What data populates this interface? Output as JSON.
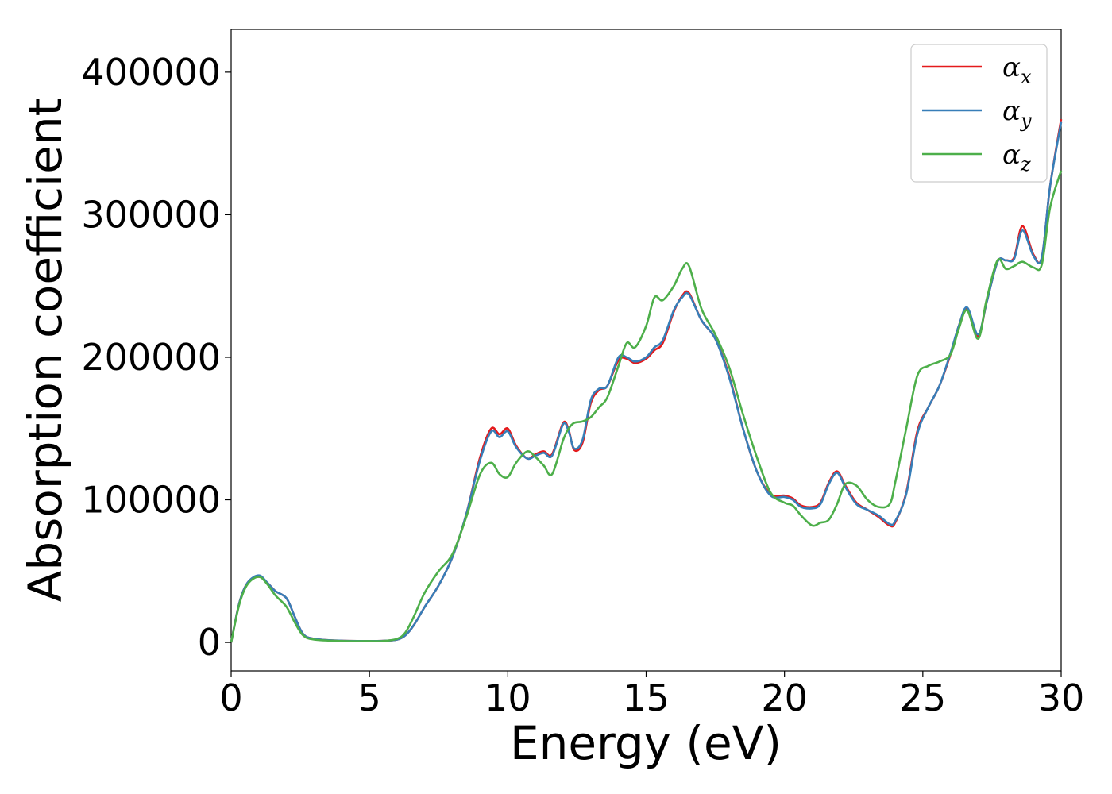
{
  "chart_data": {
    "type": "line",
    "xlabel": "Energy (eV)",
    "ylabel": "Absorption coefficient",
    "xlim": [
      0,
      30
    ],
    "ylim": [
      -20000,
      430000
    ],
    "xticks": [
      0,
      5,
      10,
      15,
      20,
      25,
      30
    ],
    "xtick_labels": [
      "0",
      "5",
      "10",
      "15",
      "20",
      "25",
      "30"
    ],
    "yticks": [
      0,
      100000,
      200000,
      300000,
      400000
    ],
    "ytick_labels": [
      "0",
      "100000",
      "200000",
      "300000",
      "400000"
    ],
    "grid": false,
    "legend_position": "top-right",
    "series": [
      {
        "name": "α",
        "subscript": "x",
        "color": "#e41a1c",
        "x": [
          0,
          0.3,
          0.6,
          1.0,
          1.3,
          1.6,
          2.0,
          2.3,
          2.6,
          3.0,
          4.0,
          5.0,
          5.5,
          6.0,
          6.3,
          6.6,
          7.0,
          7.5,
          8.0,
          8.5,
          9.0,
          9.4,
          9.7,
          10.0,
          10.3,
          10.7,
          11.0,
          11.3,
          11.6,
          12.0,
          12.2,
          12.4,
          12.7,
          13.0,
          13.3,
          13.6,
          14.0,
          14.3,
          14.6,
          15.0,
          15.3,
          15.6,
          16.0,
          16.3,
          16.55,
          17.0,
          17.5,
          18.0,
          18.5,
          19.0,
          19.5,
          20.0,
          20.3,
          20.6,
          21.0,
          21.3,
          21.6,
          21.9,
          22.2,
          22.6,
          23.0,
          23.4,
          23.8,
          24.0,
          24.4,
          24.8,
          25.2,
          25.6,
          26.0,
          26.3,
          26.6,
          27.0,
          27.3,
          27.7,
          28.0,
          28.3,
          28.6,
          29.0,
          29.3,
          29.6,
          30.0
        ],
        "y": [
          0,
          28000,
          42000,
          46000,
          42000,
          36000,
          31000,
          18000,
          6000,
          2500,
          1200,
          1000,
          1100,
          2000,
          5000,
          12000,
          25000,
          40000,
          60000,
          90000,
          130000,
          150000,
          146000,
          150000,
          138000,
          129000,
          132000,
          134000,
          132000,
          154000,
          149000,
          135000,
          140000,
          168000,
          177000,
          180000,
          198000,
          199000,
          196000,
          199000,
          205000,
          210000,
          232000,
          243000,
          245000,
          226000,
          213000,
          187000,
          150000,
          120000,
          104000,
          103000,
          101000,
          96000,
          95000,
          98000,
          112000,
          120000,
          110000,
          98000,
          93000,
          88000,
          82000,
          84000,
          105000,
          148000,
          165000,
          180000,
          202000,
          222000,
          234000,
          215000,
          238000,
          267000,
          268000,
          270000,
          292000,
          272000,
          270000,
          320000,
          367000
        ]
      },
      {
        "name": "α",
        "subscript": "y",
        "color": "#377eb8",
        "x": [
          0,
          0.3,
          0.6,
          1.0,
          1.3,
          1.6,
          2.0,
          2.3,
          2.6,
          3.0,
          4.0,
          5.0,
          5.5,
          6.0,
          6.3,
          6.6,
          7.0,
          7.5,
          8.0,
          8.5,
          9.0,
          9.4,
          9.7,
          10.0,
          10.3,
          10.7,
          11.0,
          11.3,
          11.6,
          12.0,
          12.2,
          12.4,
          12.7,
          13.0,
          13.3,
          13.6,
          14.0,
          14.3,
          14.6,
          15.0,
          15.3,
          15.6,
          16.0,
          16.3,
          16.55,
          17.0,
          17.5,
          18.0,
          18.5,
          19.0,
          19.5,
          20.0,
          20.3,
          20.6,
          21.0,
          21.3,
          21.6,
          21.9,
          22.2,
          22.6,
          23.0,
          23.4,
          23.8,
          24.0,
          24.4,
          24.8,
          25.2,
          25.6,
          26.0,
          26.3,
          26.6,
          27.0,
          27.3,
          27.7,
          28.0,
          28.3,
          28.6,
          29.0,
          29.3,
          29.6,
          30.0
        ],
        "y": [
          0,
          28000,
          42000,
          47000,
          42000,
          36000,
          31000,
          18000,
          6000,
          2500,
          1200,
          1000,
          1100,
          2000,
          5000,
          12000,
          25000,
          40000,
          60000,
          90000,
          128000,
          148000,
          144000,
          148000,
          137000,
          129000,
          131000,
          133000,
          131000,
          153000,
          148000,
          136000,
          142000,
          170000,
          178000,
          180000,
          200000,
          200000,
          197000,
          200000,
          207000,
          212000,
          233000,
          242000,
          244000,
          226000,
          213000,
          186000,
          150000,
          120000,
          103000,
          102000,
          100000,
          95000,
          94000,
          97000,
          111000,
          119000,
          109000,
          97000,
          93000,
          89000,
          83000,
          85000,
          104000,
          146000,
          165000,
          180000,
          203000,
          222000,
          235000,
          216000,
          238000,
          267000,
          268000,
          269000,
          289000,
          271000,
          270000,
          320000,
          365000
        ]
      },
      {
        "name": "α",
        "subscript": "z",
        "color": "#4daf4a",
        "x": [
          0,
          0.3,
          0.6,
          1.0,
          1.3,
          1.6,
          2.0,
          2.3,
          2.6,
          3.0,
          4.0,
          5.0,
          5.5,
          6.0,
          6.3,
          6.6,
          7.0,
          7.5,
          8.0,
          8.5,
          9.0,
          9.4,
          9.7,
          10.0,
          10.3,
          10.7,
          11.0,
          11.3,
          11.6,
          12.0,
          12.2,
          12.4,
          12.7,
          13.0,
          13.3,
          13.6,
          14.0,
          14.3,
          14.6,
          15.0,
          15.3,
          15.6,
          16.0,
          16.3,
          16.55,
          17.0,
          17.5,
          18.0,
          18.5,
          19.0,
          19.5,
          20.0,
          20.3,
          20.6,
          21.0,
          21.3,
          21.6,
          21.9,
          22.2,
          22.6,
          23.0,
          23.4,
          23.8,
          24.0,
          24.4,
          24.8,
          25.2,
          25.6,
          26.0,
          26.3,
          26.6,
          27.0,
          27.3,
          27.7,
          28.0,
          28.3,
          28.6,
          29.0,
          29.3,
          29.6,
          30.0
        ],
        "y": [
          0,
          27000,
          41000,
          46000,
          41000,
          33000,
          25000,
          14000,
          5000,
          2000,
          1000,
          900,
          1000,
          2500,
          7000,
          18000,
          35000,
          50000,
          62000,
          88000,
          118000,
          126000,
          118000,
          116000,
          126000,
          134000,
          130000,
          124000,
          118000,
          142000,
          150000,
          154000,
          155000,
          158000,
          165000,
          172000,
          194000,
          210000,
          207000,
          222000,
          242000,
          240000,
          250000,
          262000,
          264000,
          234000,
          216000,
          193000,
          160000,
          130000,
          105000,
          98000,
          96000,
          89000,
          82000,
          84000,
          86000,
          97000,
          111000,
          110000,
          100000,
          95000,
          97000,
          112000,
          150000,
          187000,
          194000,
          197000,
          202000,
          220000,
          233000,
          213000,
          240000,
          268000,
          262000,
          264000,
          267000,
          263000,
          265000,
          305000,
          331000
        ]
      }
    ]
  }
}
